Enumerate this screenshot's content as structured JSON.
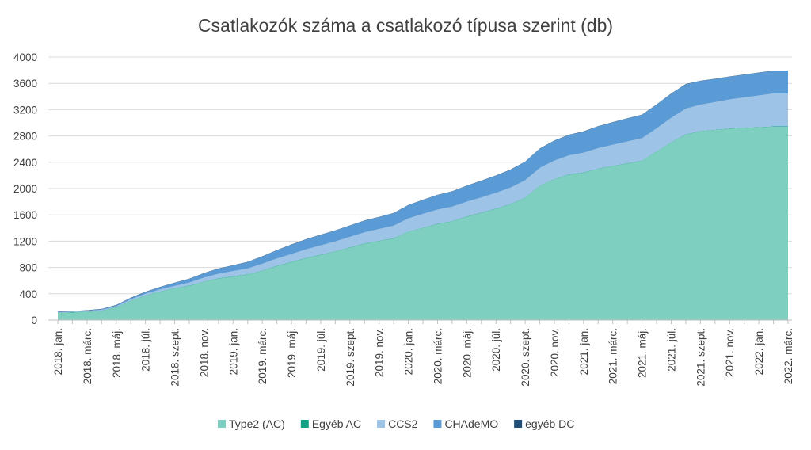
{
  "chart_data": {
    "type": "area",
    "stacked": true,
    "title": "Csatlakozók száma a csatlakozó típusa szerint (db)",
    "xlabel": "",
    "ylabel": "",
    "ylim": [
      0,
      4000
    ],
    "yticks": [
      0,
      400,
      800,
      1200,
      1600,
      2000,
      2400,
      2800,
      3200,
      3600,
      4000
    ],
    "grid": true,
    "legend_position": "bottom",
    "x": [
      "2018. jan.",
      "2018. febr.",
      "2018. márc.",
      "2018. ápr.",
      "2018. máj.",
      "2018. jún.",
      "2018. júl.",
      "2018. aug.",
      "2018. szept.",
      "2018. okt.",
      "2018. nov.",
      "2018. dec.",
      "2019. jan.",
      "2019. febr.",
      "2019. márc.",
      "2019. ápr.",
      "2019. máj.",
      "2019. jún.",
      "2019. júl.",
      "2019. aug.",
      "2019. szept.",
      "2019. okt.",
      "2019. nov.",
      "2019. dec.",
      "2020. jan.",
      "2020. febr.",
      "2020. márc.",
      "2020. ápr.",
      "2020. máj.",
      "2020. jún.",
      "2020. júl.",
      "2020. aug.",
      "2020. szept.",
      "2020. okt.",
      "2020. nov.",
      "2020. dec.",
      "2021. jan.",
      "2021. febr.",
      "2021. márc.",
      "2021. ápr.",
      "2021. máj.",
      "2021. jún.",
      "2021. júl.",
      "2021. aug.",
      "2021. szept.",
      "2021. okt.",
      "2021. nov.",
      "2021. dec.",
      "2022. jan.",
      "2022. febr.",
      "2022. márc."
    ],
    "xtick_labels": [
      "2018. jan.",
      "2018. márc.",
      "2018. máj.",
      "2018. júl.",
      "2018. szept.",
      "2018. nov.",
      "2019. jan.",
      "2019. márc.",
      "2019. máj.",
      "2019. júl.",
      "2019. szept.",
      "2019. nov.",
      "2020. jan.",
      "2020. márc.",
      "2020. máj.",
      "2020. júl.",
      "2020. szept.",
      "2020. nov.",
      "2021. jan.",
      "2021. márc.",
      "2021. máj.",
      "2021. júl.",
      "2021. szept.",
      "2021. nov.",
      "2022. jan.",
      "2022. márc."
    ],
    "series": [
      {
        "name": "Type2 (AC)",
        "color": "#7ecfbf",
        "values": [
          110,
          115,
          125,
          140,
          190,
          290,
          370,
          430,
          480,
          520,
          580,
          630,
          660,
          690,
          750,
          820,
          880,
          940,
          990,
          1040,
          1100,
          1160,
          1200,
          1240,
          1340,
          1400,
          1460,
          1500,
          1570,
          1630,
          1690,
          1760,
          1860,
          2040,
          2140,
          2210,
          2240,
          2300,
          2340,
          2380,
          2420,
          2560,
          2700,
          2820,
          2870,
          2890,
          2910,
          2920,
          2930,
          2940,
          2940
        ]
      },
      {
        "name": "Egyéb AC",
        "color": "#14a085",
        "values": [
          5,
          5,
          5,
          5,
          5,
          5,
          5,
          5,
          5,
          5,
          5,
          5,
          5,
          5,
          5,
          5,
          5,
          5,
          5,
          5,
          5,
          5,
          5,
          5,
          5,
          5,
          5,
          5,
          5,
          5,
          5,
          5,
          5,
          5,
          5,
          5,
          5,
          5,
          5,
          5,
          5,
          5,
          5,
          5,
          5,
          5,
          5,
          5,
          5,
          5,
          5
        ]
      },
      {
        "name": "CCS2",
        "color": "#9dc3e6",
        "values": [
          5,
          6,
          8,
          10,
          15,
          20,
          25,
          30,
          35,
          45,
          60,
          70,
          80,
          90,
          100,
          110,
          120,
          130,
          140,
          150,
          160,
          170,
          180,
          190,
          200,
          210,
          215,
          220,
          225,
          230,
          240,
          250,
          260,
          270,
          280,
          290,
          300,
          310,
          320,
          330,
          340,
          350,
          370,
          390,
          400,
          420,
          440,
          460,
          480,
          500,
          500
        ]
      },
      {
        "name": "CHAdeMO",
        "color": "#5b9bd5",
        "values": [
          5,
          6,
          8,
          10,
          15,
          20,
          25,
          35,
          45,
          55,
          65,
          75,
          85,
          95,
          110,
          125,
          140,
          150,
          160,
          165,
          170,
          175,
          180,
          190,
          200,
          210,
          220,
          230,
          240,
          250,
          260,
          270,
          280,
          290,
          300,
          310,
          320,
          330,
          340,
          350,
          355,
          360,
          365,
          370,
          360,
          350,
          345,
          345,
          345,
          345,
          345
        ]
      },
      {
        "name": "egyéb DC",
        "color": "#1f4e79",
        "values": [
          5,
          5,
          5,
          5,
          5,
          5,
          5,
          5,
          5,
          5,
          5,
          5,
          5,
          5,
          5,
          5,
          5,
          5,
          5,
          5,
          5,
          5,
          5,
          5,
          5,
          5,
          5,
          5,
          5,
          5,
          5,
          5,
          5,
          5,
          5,
          5,
          5,
          5,
          5,
          5,
          5,
          5,
          5,
          5,
          5,
          5,
          5,
          5,
          5,
          5,
          5
        ]
      }
    ]
  }
}
